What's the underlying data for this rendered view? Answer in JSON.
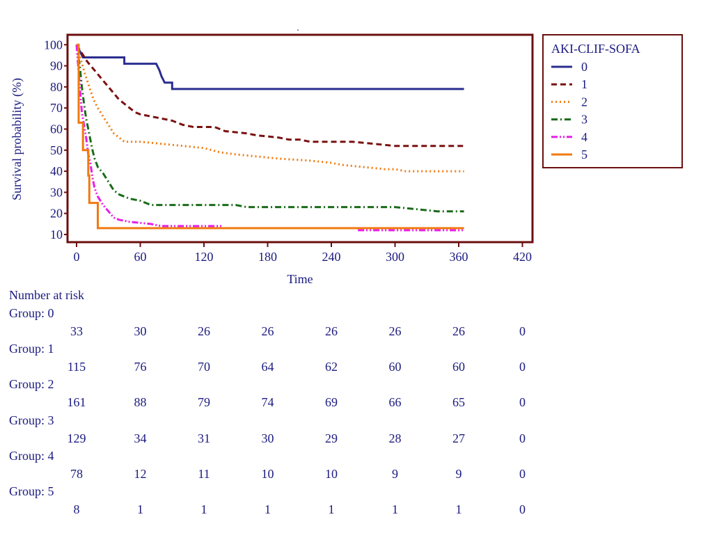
{
  "chart_data": {
    "type": "line",
    "subtype": "kaplan-meier-step",
    "title": ".",
    "xlabel": "Time",
    "ylabel": "Survival probability (%)",
    "xlim": [
      0,
      420
    ],
    "ylim": [
      10,
      100
    ],
    "xticks": [
      0,
      60,
      120,
      180,
      240,
      300,
      360,
      420
    ],
    "yticks": [
      10,
      20,
      30,
      40,
      50,
      60,
      70,
      80,
      90,
      100
    ],
    "legend": {
      "title": "AKI-CLIF-SOFA",
      "position": "right"
    },
    "colors": {
      "axis": "#6b0f0f",
      "text": "#1a1a80"
    },
    "series": [
      {
        "name": "0",
        "color": "#2a2d8f",
        "dash": "solid",
        "points": [
          [
            0,
            100
          ],
          [
            3,
            97
          ],
          [
            6,
            94
          ],
          [
            45,
            94
          ],
          [
            45,
            91
          ],
          [
            75,
            91
          ],
          [
            78,
            88
          ],
          [
            80,
            85
          ],
          [
            83,
            82
          ],
          [
            90,
            82
          ],
          [
            90,
            79
          ],
          [
            365,
            79
          ]
        ]
      },
      {
        "name": "1",
        "color": "#7b1010",
        "dash": "dash",
        "points": [
          [
            0,
            100
          ],
          [
            5,
            96
          ],
          [
            10,
            92
          ],
          [
            15,
            89
          ],
          [
            20,
            86
          ],
          [
            25,
            83
          ],
          [
            30,
            80
          ],
          [
            35,
            77
          ],
          [
            40,
            74
          ],
          [
            45,
            72
          ],
          [
            50,
            70
          ],
          [
            55,
            68
          ],
          [
            60,
            67
          ],
          [
            70,
            66
          ],
          [
            80,
            65
          ],
          [
            90,
            64
          ],
          [
            100,
            62
          ],
          [
            110,
            61
          ],
          [
            130,
            61
          ],
          [
            140,
            59
          ],
          [
            160,
            58
          ],
          [
            170,
            57
          ],
          [
            190,
            56
          ],
          [
            200,
            55
          ],
          [
            210,
            55
          ],
          [
            220,
            54
          ],
          [
            260,
            54
          ],
          [
            280,
            53
          ],
          [
            300,
            52
          ],
          [
            365,
            52
          ]
        ]
      },
      {
        "name": "2",
        "color": "#f07a10",
        "dash": "dot",
        "points": [
          [
            0,
            100
          ],
          [
            4,
            93
          ],
          [
            8,
            86
          ],
          [
            12,
            80
          ],
          [
            16,
            74
          ],
          [
            20,
            70
          ],
          [
            25,
            66
          ],
          [
            30,
            62
          ],
          [
            35,
            58
          ],
          [
            40,
            56
          ],
          [
            45,
            54
          ],
          [
            60,
            54
          ],
          [
            80,
            53
          ],
          [
            100,
            52
          ],
          [
            120,
            51
          ],
          [
            135,
            49
          ],
          [
            150,
            48
          ],
          [
            170,
            47
          ],
          [
            190,
            46
          ],
          [
            220,
            45
          ],
          [
            240,
            44
          ],
          [
            250,
            43
          ],
          [
            270,
            42
          ],
          [
            290,
            41
          ],
          [
            300,
            41
          ],
          [
            310,
            40
          ],
          [
            365,
            40
          ]
        ]
      },
      {
        "name": "3",
        "color": "#1a6b1a",
        "dash": "dashdot",
        "points": [
          [
            0,
            100
          ],
          [
            3,
            90
          ],
          [
            5,
            80
          ],
          [
            7,
            72
          ],
          [
            9,
            65
          ],
          [
            11,
            60
          ],
          [
            13,
            55
          ],
          [
            15,
            50
          ],
          [
            17,
            46
          ],
          [
            20,
            42
          ],
          [
            25,
            39
          ],
          [
            30,
            35
          ],
          [
            35,
            31
          ],
          [
            40,
            29
          ],
          [
            45,
            28
          ],
          [
            50,
            27
          ],
          [
            60,
            26
          ],
          [
            70,
            24
          ],
          [
            100,
            24
          ],
          [
            150,
            24
          ],
          [
            160,
            23
          ],
          [
            300,
            23
          ],
          [
            320,
            22
          ],
          [
            340,
            21
          ],
          [
            365,
            21
          ]
        ]
      },
      {
        "name": "4",
        "color": "#e81ee8",
        "dash": "dashdotdot",
        "points": [
          [
            0,
            100
          ],
          [
            3,
            80
          ],
          [
            5,
            68
          ],
          [
            7,
            62
          ],
          [
            9,
            56
          ],
          [
            11,
            48
          ],
          [
            13,
            44
          ],
          [
            15,
            37
          ],
          [
            17,
            32
          ],
          [
            20,
            28
          ],
          [
            25,
            24
          ],
          [
            30,
            21
          ],
          [
            35,
            18
          ],
          [
            40,
            17
          ],
          [
            50,
            16
          ],
          [
            70,
            15
          ],
          [
            80,
            14
          ],
          [
            138,
            14
          ],
          [
            null,
            null
          ],
          [
            265,
            12
          ],
          [
            365,
            12
          ]
        ]
      },
      {
        "name": "5",
        "color": "#f07a10",
        "dash": "solid",
        "points": [
          [
            0,
            100
          ],
          [
            2,
            100
          ],
          [
            2,
            63
          ],
          [
            6,
            63
          ],
          [
            6,
            50
          ],
          [
            11,
            50
          ],
          [
            11,
            38
          ],
          [
            12,
            38
          ],
          [
            12,
            25
          ],
          [
            20,
            25
          ],
          [
            20,
            13
          ],
          [
            365,
            13
          ]
        ]
      }
    ]
  },
  "risk_table": {
    "title": "Number at risk",
    "times": [
      0,
      60,
      120,
      180,
      240,
      300,
      360,
      420
    ],
    "groups": [
      {
        "label": "Group: 0",
        "values": [
          "33",
          "30",
          "26",
          "26",
          "26",
          "26",
          "26",
          "0"
        ]
      },
      {
        "label": "Group: 1",
        "values": [
          "115",
          "76",
          "70",
          "64",
          "62",
          "60",
          "60",
          "0"
        ]
      },
      {
        "label": "Group: 2",
        "values": [
          "161",
          "88",
          "79",
          "74",
          "69",
          "66",
          "65",
          "0"
        ]
      },
      {
        "label": "Group: 3",
        "values": [
          "129",
          "34",
          "31",
          "30",
          "29",
          "28",
          "27",
          "0"
        ]
      },
      {
        "label": "Group: 4",
        "values": [
          "78",
          "12",
          "11",
          "10",
          "10",
          "9",
          "9",
          "0"
        ]
      },
      {
        "label": "Group: 5",
        "values": [
          "8",
          "1",
          "1",
          "1",
          "1",
          "1",
          "1",
          "0"
        ]
      }
    ]
  }
}
